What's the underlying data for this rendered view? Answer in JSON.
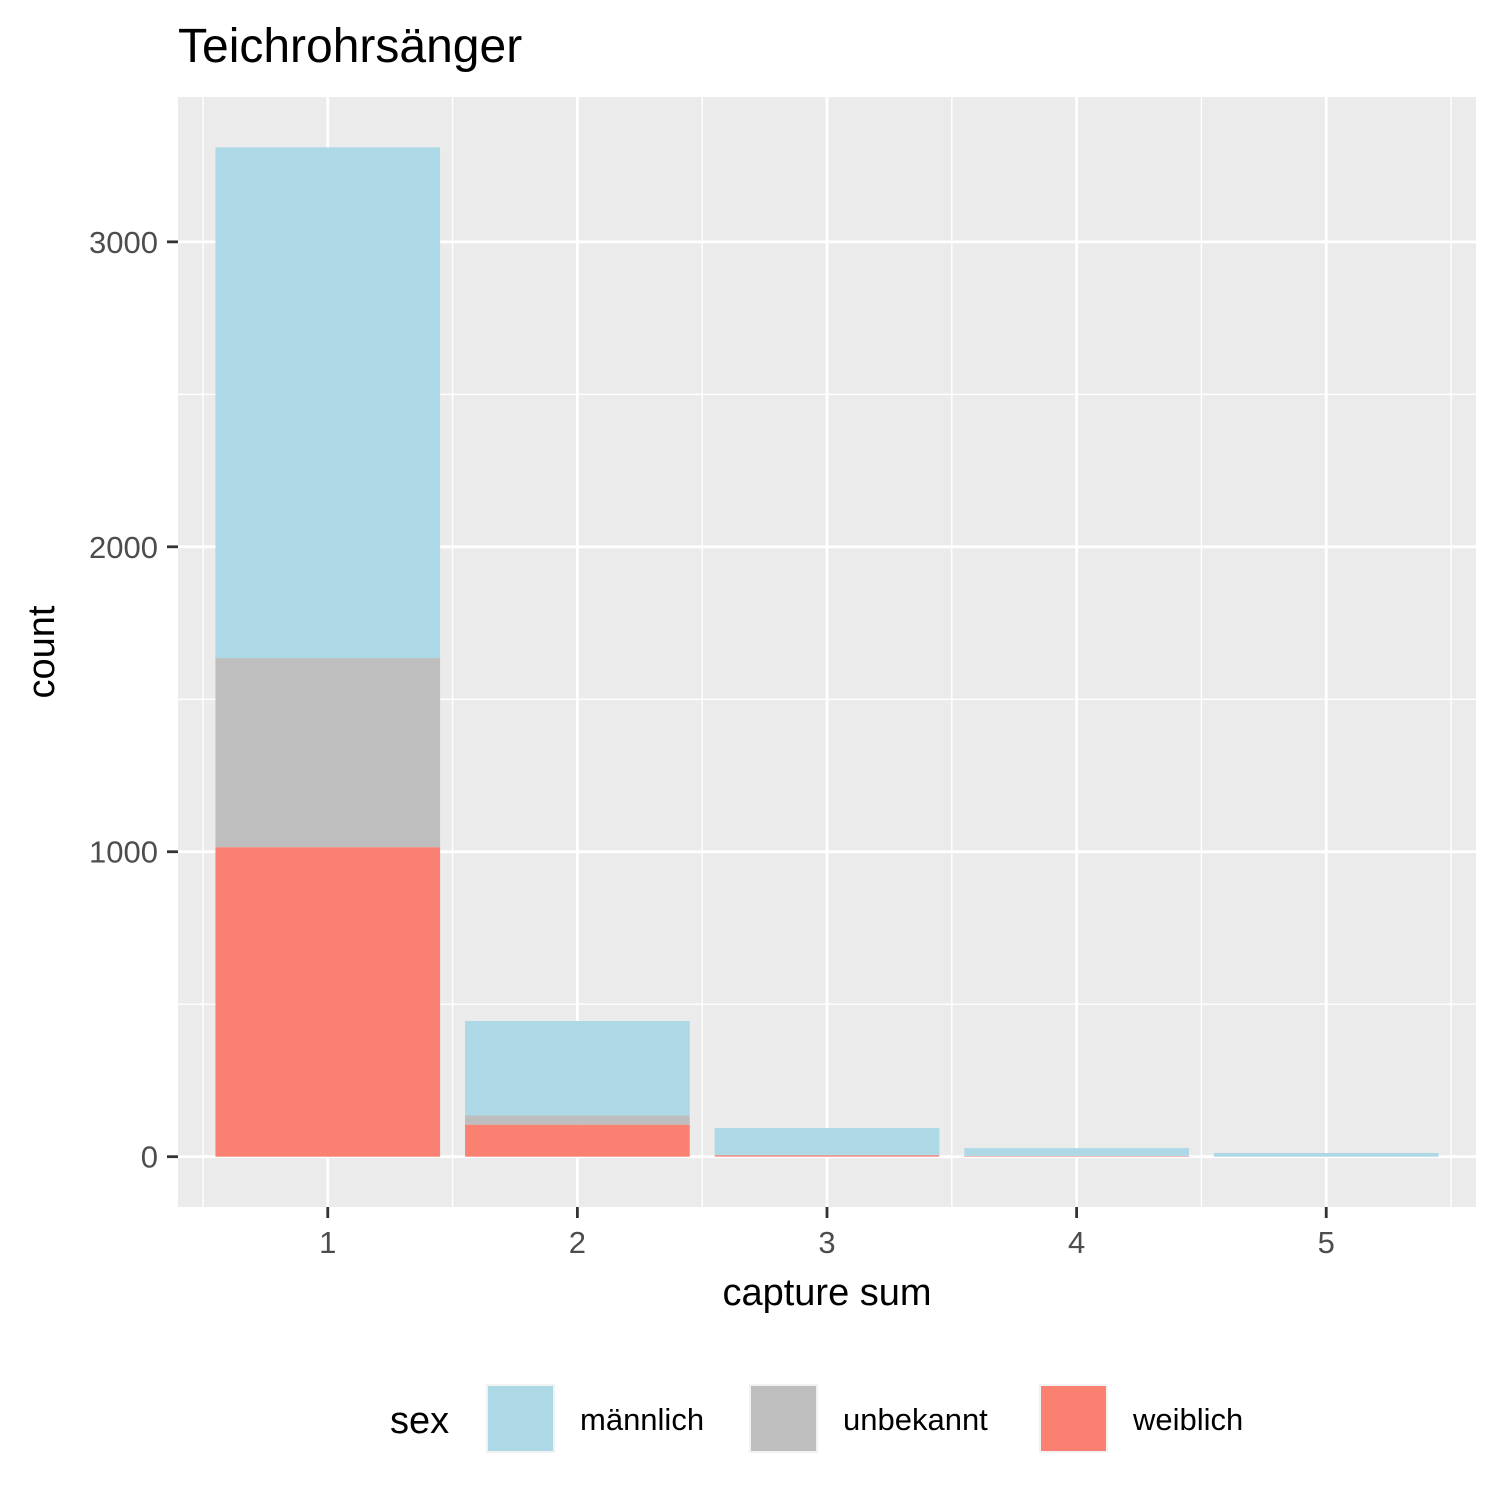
{
  "chart_data": {
    "type": "bar",
    "stacked": true,
    "title": "Teichrohrsänger",
    "xlabel": "capture sum",
    "ylabel": "count",
    "categories": [
      "1",
      "2",
      "3",
      "4",
      "5"
    ],
    "series": [
      {
        "name": "weiblich",
        "color": "#FA8072",
        "values": [
          1015,
          105,
          4,
          2,
          0
        ]
      },
      {
        "name": "unbekannt",
        "color": "#BEBEBE",
        "values": [
          620,
          30,
          2,
          1,
          0
        ]
      },
      {
        "name": "männlich",
        "color": "#ADD8E6",
        "values": [
          1675,
          310,
          88,
          25,
          12
        ]
      }
    ],
    "yticks": [
      0,
      1000,
      2000,
      3000
    ],
    "ylim": [
      -165,
      3475
    ],
    "grid": true,
    "legend": {
      "title": "sex",
      "position": "bottom",
      "items": [
        "männlich",
        "unbekannt",
        "weiblich"
      ]
    },
    "colors": {
      "panel_background": "#EBEBEB",
      "grid": "#FFFFFF"
    }
  }
}
